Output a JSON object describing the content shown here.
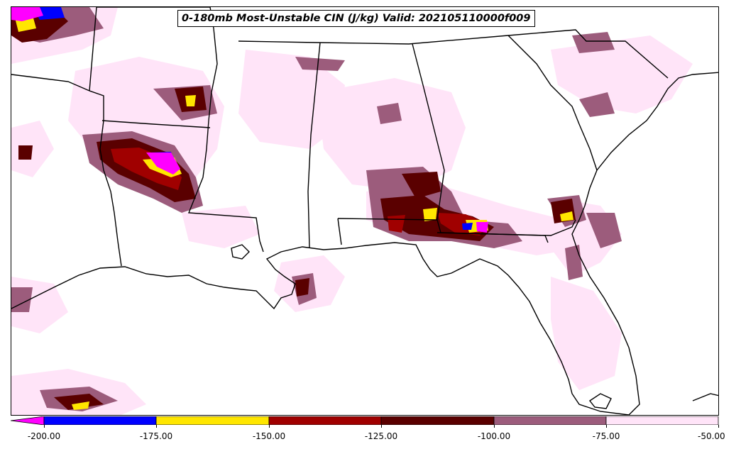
{
  "title": "0-180mb Most-Unstable CIN (J/kg) Valid: 202105110000f009",
  "colorbar": {
    "colors": [
      "#ff00ff",
      "#0000ff",
      "#ffe600",
      "#a00000",
      "#5a0000",
      "#9c5c7c",
      "#ffe4f8"
    ],
    "ticks": [
      "-200.00",
      "-175.00",
      "-150.00",
      "-125.00",
      "-100.00",
      "-75.00",
      "-50.00"
    ]
  },
  "fill_colors": {
    "light": "#ffe4f8",
    "mauve": "#9c5c7c",
    "dark": "#5a0000",
    "red": "#a00000",
    "yellow": "#ffe600",
    "blue": "#0000ff",
    "magenta": "#ff00ff"
  }
}
